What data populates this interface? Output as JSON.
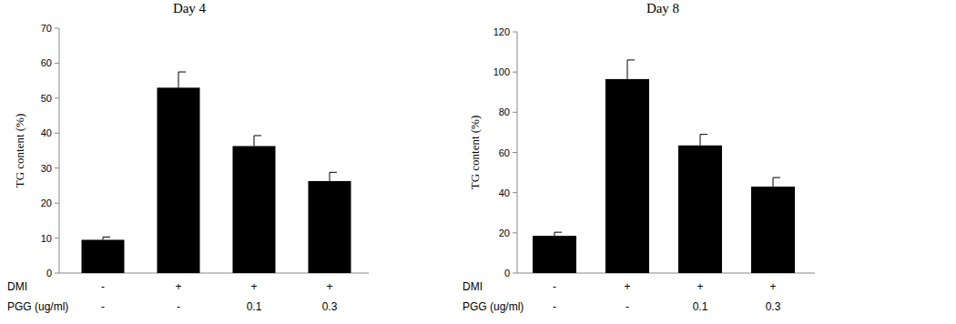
{
  "chart_data": [
    {
      "type": "bar",
      "title": "Day 4",
      "y_label": "TG content (%)",
      "category_rows": [
        "DMI",
        "PGG (ug/ml)"
      ],
      "categories": [
        [
          "-",
          "-"
        ],
        [
          "+",
          "-"
        ],
        [
          "+",
          "0.1"
        ],
        [
          "+",
          "0.3"
        ]
      ],
      "values": [
        9.5,
        53,
        36.3,
        26.3
      ],
      "errors": [
        0.8,
        4.5,
        3,
        2.5
      ],
      "color": "#000000",
      "ylim": [
        0,
        70
      ],
      "yticks": [
        0,
        10,
        20,
        30,
        40,
        50,
        60,
        70
      ],
      "grid": false
    },
    {
      "type": "bar",
      "title": "Day 8",
      "y_label": "TG content (%)",
      "category_rows": [
        "DMI",
        "PGG (ug/ml)"
      ],
      "categories": [
        [
          "-",
          "-"
        ],
        [
          "+",
          "-"
        ],
        [
          "+",
          "0.1"
        ],
        [
          "+",
          "0.3"
        ]
      ],
      "values": [
        18.5,
        96.5,
        63.5,
        43
      ],
      "errors": [
        1.8,
        9.5,
        5.5,
        4.5
      ],
      "color": "#000000",
      "ylim": [
        0,
        120
      ],
      "yticks": [
        0,
        20,
        40,
        60,
        80,
        100,
        120
      ],
      "grid": false
    }
  ]
}
